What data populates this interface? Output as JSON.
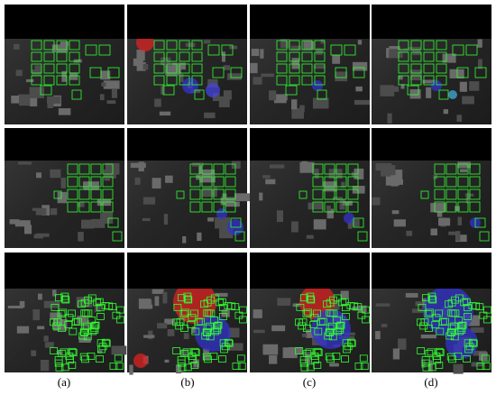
{
  "figure": {
    "subfigure_labels": [
      "(a)",
      "(b)",
      "(c)",
      "(d)"
    ]
  }
}
